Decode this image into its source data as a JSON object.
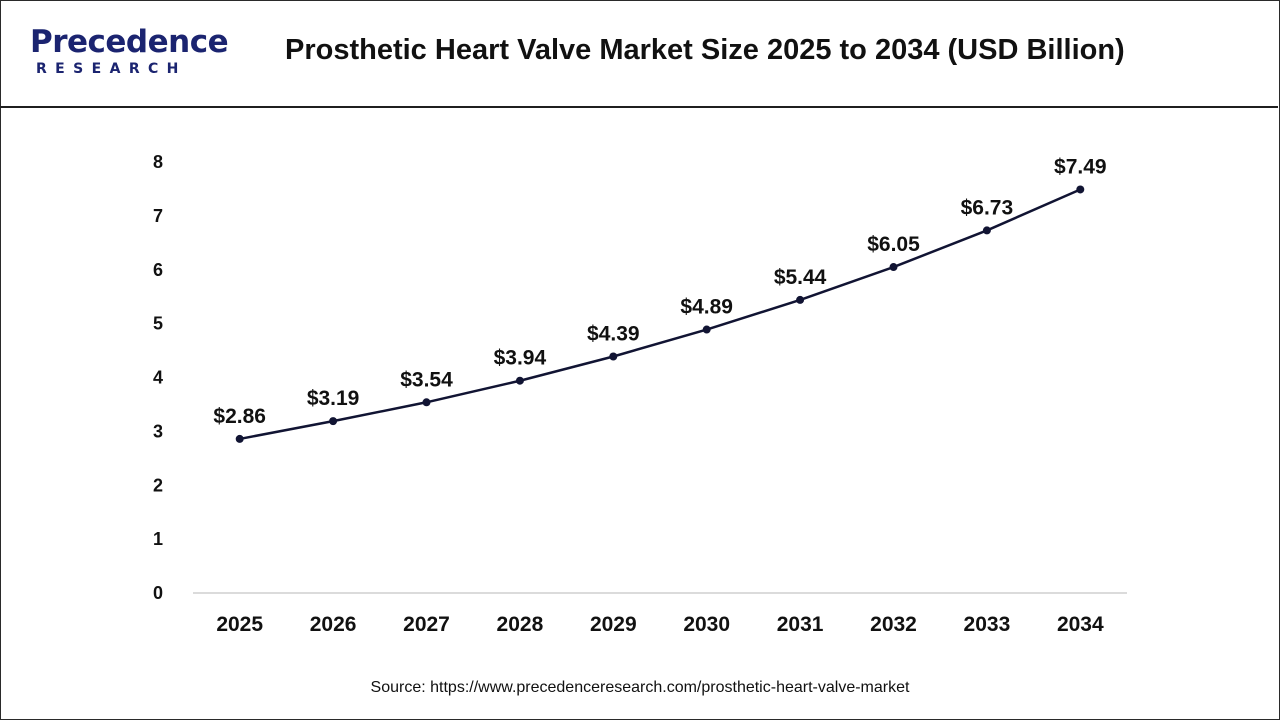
{
  "header": {
    "logo_text": "Precedence",
    "logo_subtext": "RESEARCH",
    "title": "Prosthetic Heart Valve Market Size 2025 to 2034 (USD Billion)"
  },
  "source": "Source: https://www.precedenceresearch.com/prosthetic-heart-valve-market",
  "colors": {
    "line": "#111433",
    "brand": "#1b2470",
    "axis": "#cfcfcf"
  },
  "chart_data": {
    "type": "line",
    "title": "Prosthetic Heart Valve Market Size 2025 to 2034 (USD Billion)",
    "xlabel": "",
    "ylabel": "",
    "categories": [
      "2025",
      "2026",
      "2027",
      "2028",
      "2029",
      "2030",
      "2031",
      "2032",
      "2033",
      "2034"
    ],
    "values": [
      2.86,
      3.19,
      3.54,
      3.94,
      4.39,
      4.89,
      5.44,
      6.05,
      6.73,
      7.49
    ],
    "data_labels": [
      "$2.86",
      "$3.19",
      "$3.54",
      "$3.94",
      "$4.39",
      "$4.89",
      "$5.44",
      "$6.05",
      "$6.73",
      "$7.49"
    ],
    "ylim": [
      0,
      8
    ],
    "yticks": [
      "0",
      "1",
      "2",
      "3",
      "4",
      "5",
      "6",
      "7",
      "8"
    ],
    "grid": false,
    "legend": "none"
  }
}
